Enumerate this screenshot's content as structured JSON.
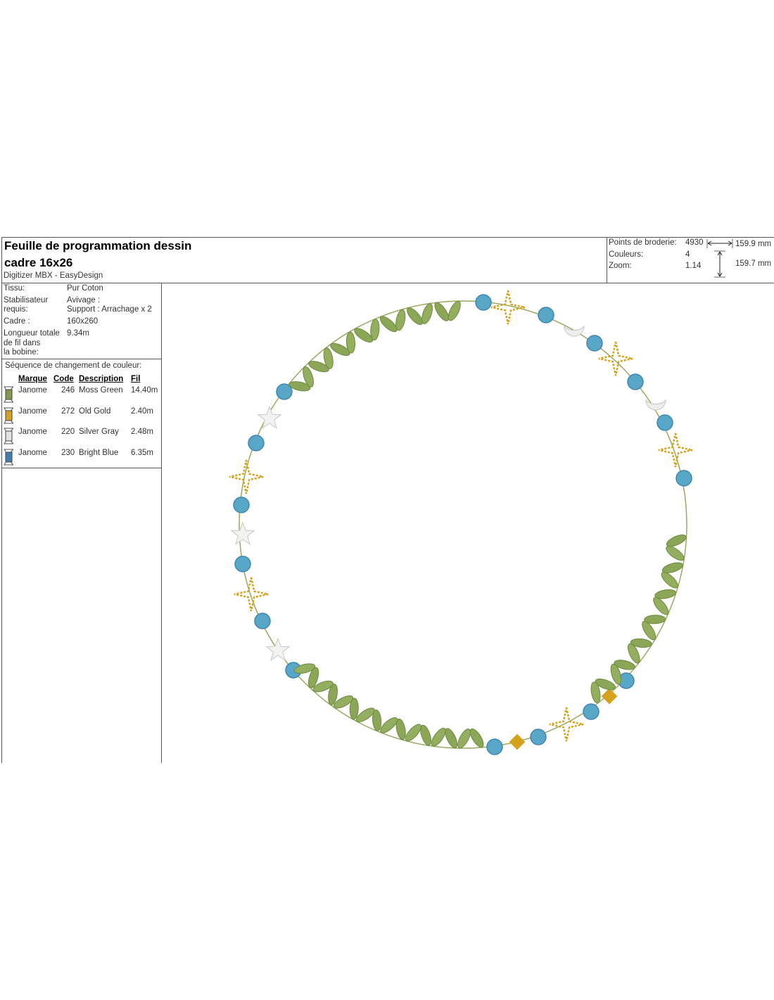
{
  "header": {
    "title_line1": "Feuille de programmation dessin",
    "title_line2": "cadre 16x26",
    "software": "Digitizer MBX - EasyDesign"
  },
  "stats": {
    "points_label": "Points de broderie:",
    "points_value": "4930",
    "colors_label": "Couleurs:",
    "colors_value": "4",
    "zoom_label": "Zoom:",
    "zoom_value": "1.14",
    "width": "159.9 mm",
    "height": "159.7 mm"
  },
  "info": {
    "tissu_label": "Tissu:",
    "tissu_value": "Pur Coton",
    "stab_label1": "Stabilisateur",
    "stab_label2": "requis:",
    "stab_value1": "Avivage :",
    "stab_value2": "Support : Arrachage x 2",
    "cadre_label": "Cadre :",
    "cadre_value": "160x260",
    "longueur_label1": "Longueur totale",
    "longueur_label2": "de fil dans",
    "longueur_label3": "la bobine:",
    "longueur_value": "9.34m"
  },
  "sequence": {
    "title": "Séquence de changement de couleur:",
    "headers": {
      "brand": "Marque",
      "code": "Code",
      "description": "Description",
      "thread": "Fil"
    },
    "rows": [
      {
        "brand": "Janome",
        "code": "246",
        "description": "Moss Green",
        "thread": "14.40m",
        "color": "#7f9a4f"
      },
      {
        "brand": "Janome",
        "code": "272",
        "description": "Old Gold",
        "thread": "2.40m",
        "color": "#d4a21c"
      },
      {
        "brand": "Janome",
        "code": "220",
        "description": "Silver Gray",
        "thread": "2.48m",
        "color": "#e2e2e2"
      },
      {
        "brand": "Janome",
        "code": "230",
        "description": "Bright Blue",
        "thread": "6.35m",
        "color": "#3f7fb6"
      }
    ]
  }
}
